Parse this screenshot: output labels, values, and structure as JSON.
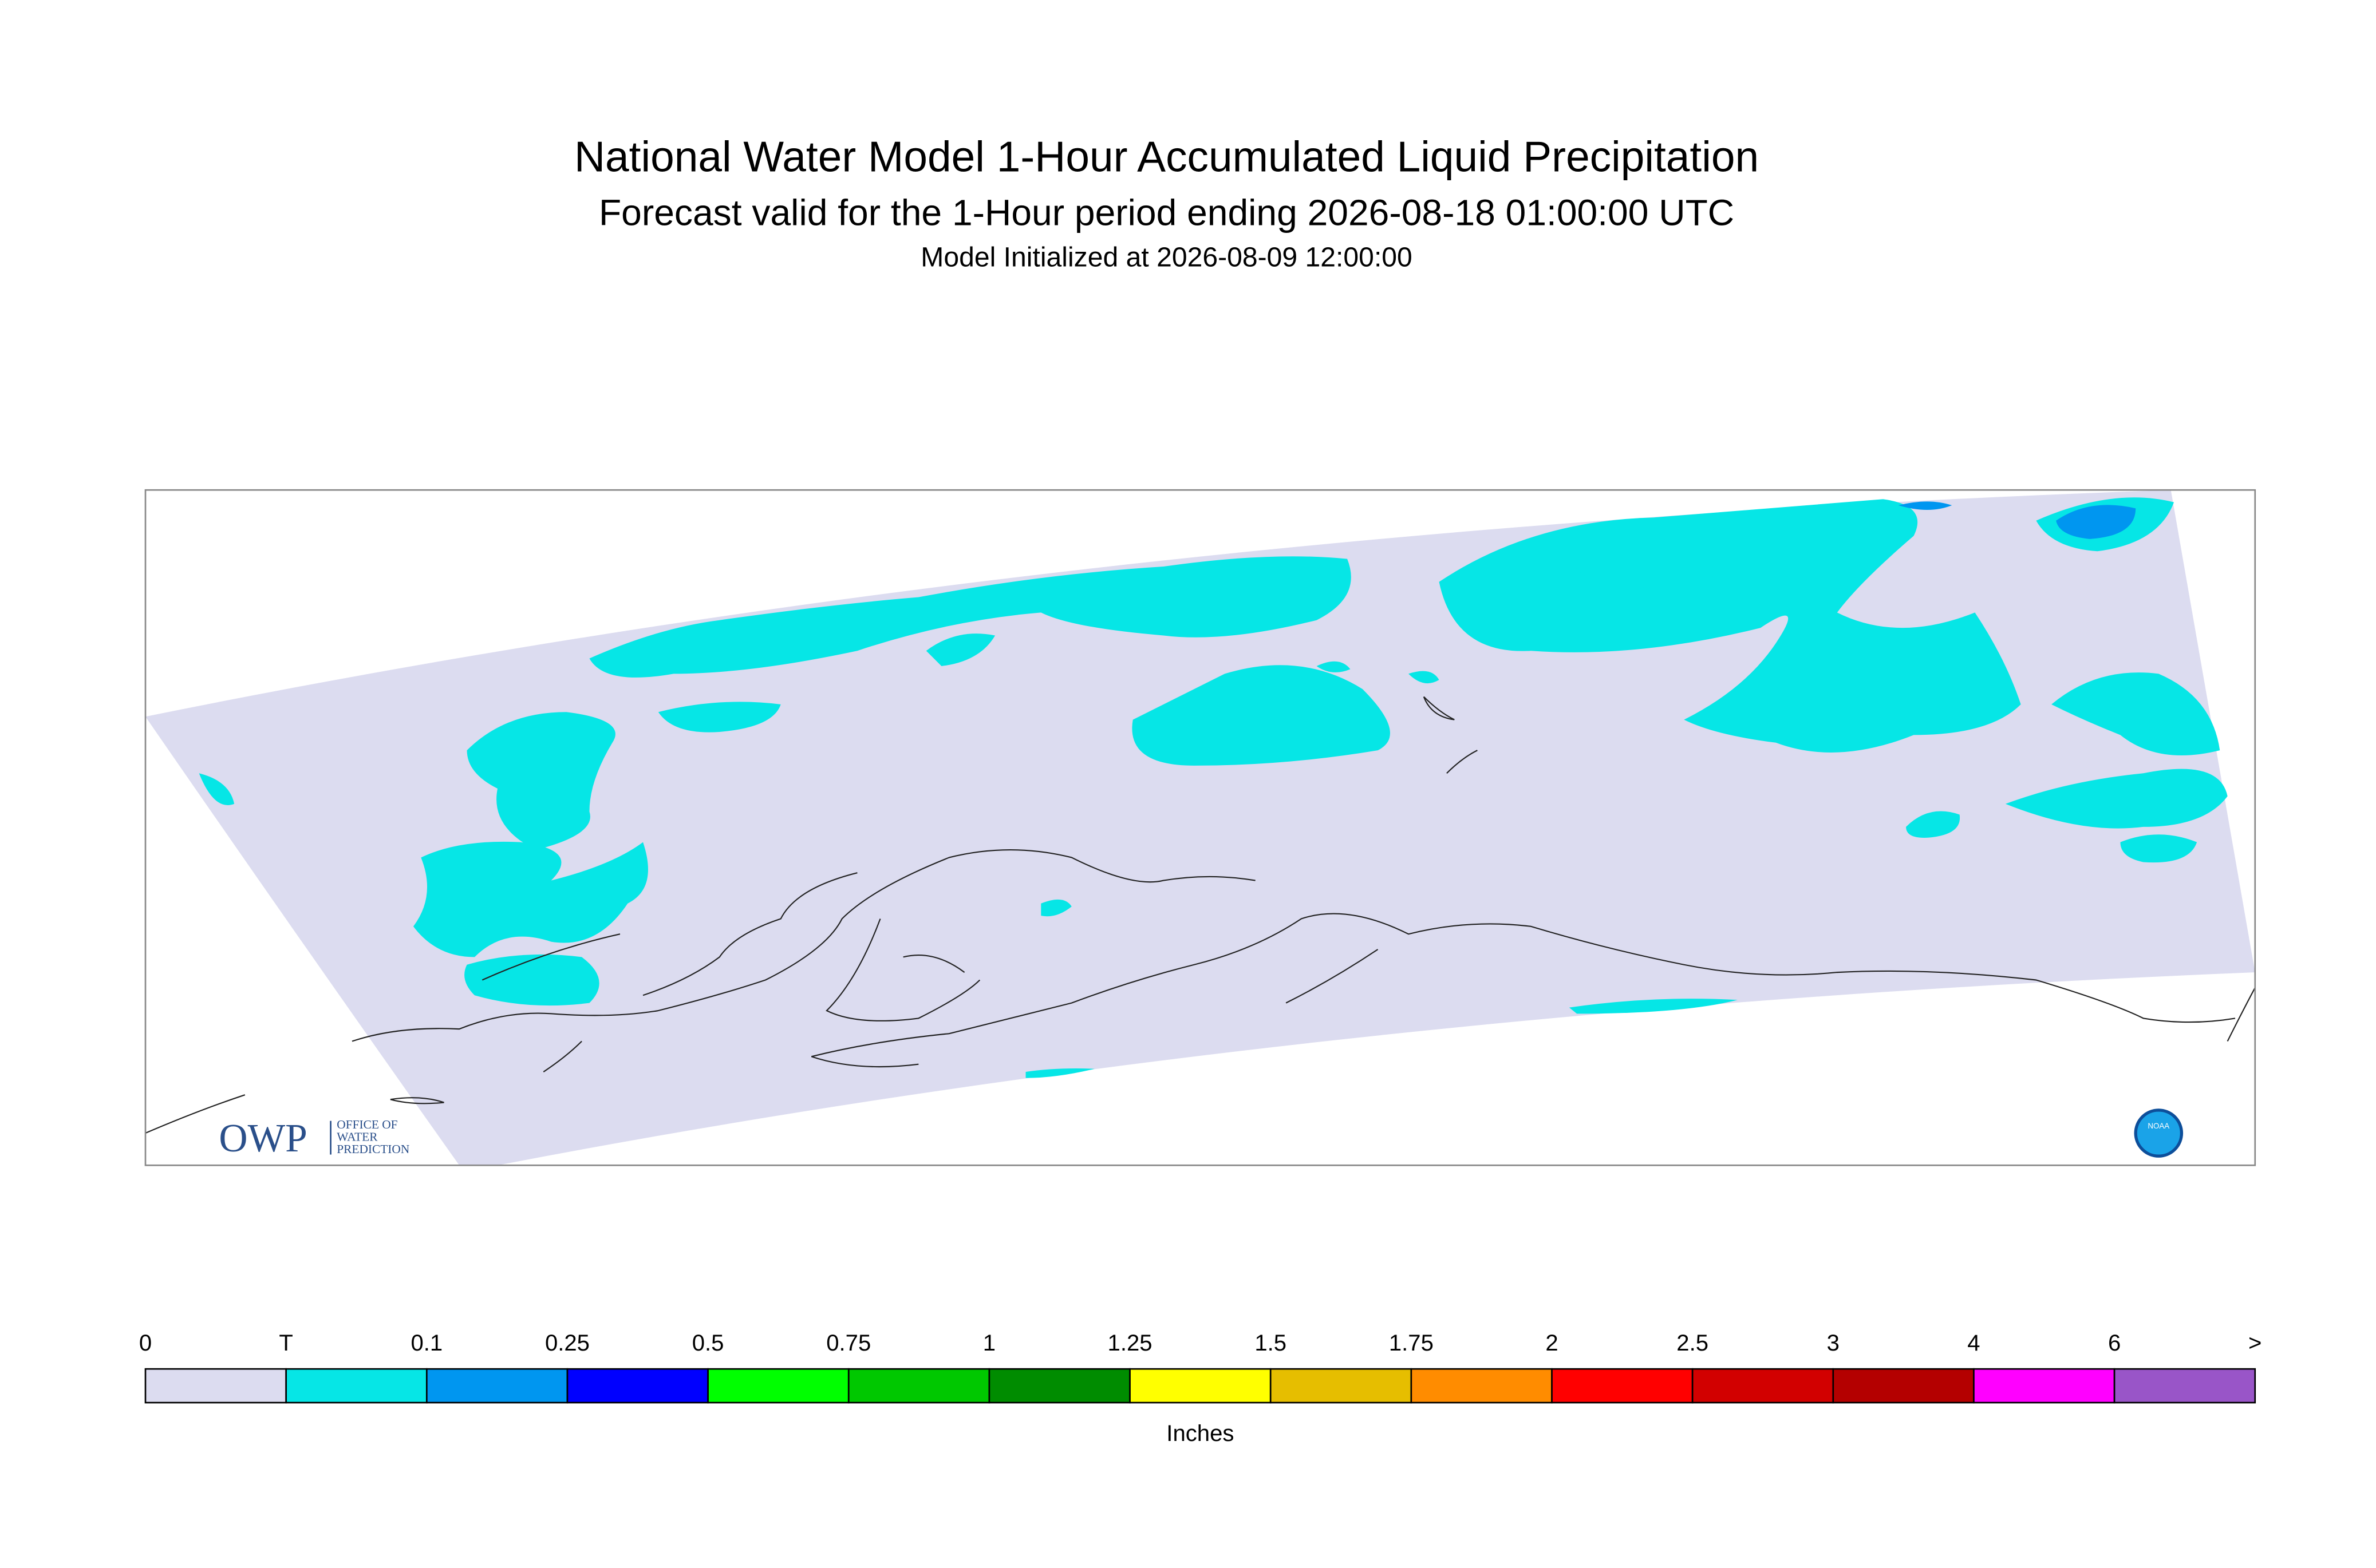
{
  "header": {
    "title": "National Water Model 1-Hour Accumulated Liquid Precipitation",
    "subtitle": "Forecast valid for the 1-Hour period ending 2026-08-18 01:00:00 UTC",
    "initialized": "Model Initialized at 2026-08-09 12:00:00"
  },
  "logos": {
    "owp": "OWP",
    "owp_lines": [
      "OFFICE OF",
      "WATER",
      "PREDICTION"
    ],
    "noaa": "NOAA"
  },
  "colorbar": {
    "labels": [
      "0",
      "T",
      "0.1",
      "0.25",
      "0.5",
      "0.75",
      "1",
      "1.25",
      "1.5",
      "1.75",
      "2",
      "2.5",
      "3",
      "4",
      "6",
      ">"
    ],
    "colors": [
      "#dcdcf0",
      "#06e6e6",
      "#0096f0",
      "#0000ff",
      "#00ff00",
      "#00c800",
      "#008c00",
      "#ffff00",
      "#e6be00",
      "#ff8c00",
      "#ff0000",
      "#d20000",
      "#b40000",
      "#ff00ff",
      "#9955c8"
    ],
    "unit": "Inches"
  }
}
